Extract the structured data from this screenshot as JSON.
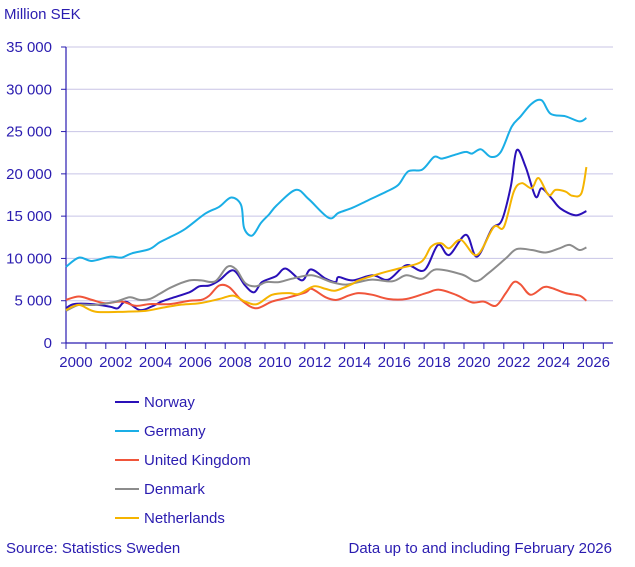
{
  "chart_data": {
    "type": "line",
    "ylabel": "Million SEK",
    "ylim": [
      0,
      35000
    ],
    "yticks": [
      0,
      5000,
      10000,
      15000,
      20000,
      25000,
      30000,
      35000
    ],
    "ytick_labels": [
      "0",
      "5 000",
      "10 000",
      "15 000",
      "20 000",
      "25 000",
      "30 000",
      "35 000"
    ],
    "xlim": [
      2000,
      2027
    ],
    "xtick_labels": [
      "2000",
      "2002",
      "2004",
      "2006",
      "2008",
      "2010",
      "2012",
      "2014",
      "2016",
      "2018",
      "2020",
      "2022",
      "2024",
      "2026"
    ],
    "grid": "horizontal",
    "legend_position": "bottom-left",
    "series": [
      {
        "name": "Norway",
        "color": "#2a10b8",
        "x": [
          2000,
          2000.4,
          2001.3,
          2002.2,
          2002.6,
          2003.0,
          2003.7,
          2004.3,
          2004.8,
          2005.3,
          2006.2,
          2006.7,
          2007.2,
          2007.7,
          2008.4,
          2009.0,
          2009.45,
          2009.85,
          2010.55,
          2011.05,
          2011.85,
          2012.3,
          2013.05,
          2013.55,
          2013.7,
          2014.4,
          2015.4,
          2016.2,
          2017.1,
          2018.0,
          2018.7,
          2019.25,
          2020.1,
          2020.65,
          2021.4,
          2021.9,
          2022.35,
          2022.65,
          2023.1,
          2023.6,
          2023.9,
          2024.4,
          2024.85,
          2025.6,
          2026.15
        ],
        "y": [
          4100,
          4600,
          4600,
          4300,
          4100,
          4900,
          3900,
          4300,
          4900,
          5300,
          6000,
          6700,
          6800,
          7400,
          8600,
          6800,
          6000,
          7200,
          7900,
          8800,
          7400,
          8700,
          7600,
          7200,
          7800,
          7400,
          8000,
          7500,
          9200,
          8600,
          11600,
          10400,
          12800,
          10200,
          13500,
          14500,
          18500,
          22800,
          20800,
          17300,
          18300,
          17100,
          15900,
          15100,
          15600
        ]
      },
      {
        "name": "Germany",
        "color": "#1aaee6",
        "x": [
          2000,
          2000.65,
          2001.3,
          2002.2,
          2002.8,
          2003.3,
          2004.2,
          2004.7,
          2005.3,
          2006.0,
          2007.0,
          2007.7,
          2008.3,
          2008.8,
          2008.95,
          2009.35,
          2009.8,
          2010.2,
          2010.6,
          2011.55,
          2012.2,
          2013.2,
          2013.7,
          2014.4,
          2015.2,
          2016.1,
          2016.7,
          2017.2,
          2017.9,
          2018.5,
          2018.9,
          2019.6,
          2020.1,
          2020.4,
          2020.85,
          2021.35,
          2021.85,
          2022.4,
          2022.85,
          2023.4,
          2023.9,
          2024.35,
          2025.1,
          2025.8,
          2026.15
        ],
        "y": [
          9000,
          10100,
          9700,
          10200,
          10100,
          10600,
          11100,
          11900,
          12600,
          13500,
          15300,
          16100,
          17200,
          16300,
          13600,
          12700,
          14200,
          15200,
          16300,
          18100,
          17000,
          14800,
          15400,
          16000,
          16900,
          17900,
          18700,
          20300,
          20500,
          22000,
          21800,
          22300,
          22600,
          22400,
          22900,
          22000,
          22600,
          25600,
          26800,
          28300,
          28700,
          27100,
          26800,
          26200,
          26600
        ]
      },
      {
        "name": "United Kingdom",
        "color": "#f0553a",
        "x": [
          2000,
          2000.65,
          2001.3,
          2002.0,
          2002.8,
          2003.5,
          2004.2,
          2005.2,
          2006.2,
          2006.8,
          2007.2,
          2007.7,
          2008.2,
          2008.85,
          2009.55,
          2010.35,
          2011.2,
          2012.05,
          2012.35,
          2013.05,
          2013.6,
          2014.2,
          2014.7,
          2015.4,
          2016.2,
          2017.1,
          2018.1,
          2018.75,
          2019.6,
          2020.4,
          2021.0,
          2021.6,
          2022.1,
          2022.5,
          2022.85,
          2023.35,
          2024.0,
          2024.4,
          2025.1,
          2025.8,
          2026.15
        ],
        "y": [
          5100,
          5500,
          5100,
          4700,
          4900,
          4400,
          4600,
          4600,
          5000,
          5100,
          5600,
          6800,
          6600,
          5000,
          4100,
          4900,
          5400,
          6000,
          6400,
          5400,
          5100,
          5600,
          5900,
          5700,
          5200,
          5200,
          5900,
          6300,
          5700,
          4800,
          4900,
          4400,
          5900,
          7200,
          6900,
          5700,
          6600,
          6500,
          5900,
          5600,
          5000
        ]
      },
      {
        "name": "Denmark",
        "color": "#8c8c8c",
        "x": [
          2000,
          2000.65,
          2001.5,
          2002.5,
          2003.2,
          2003.7,
          2004.2,
          2004.7,
          2005.3,
          2006.2,
          2006.8,
          2007.5,
          2008.1,
          2008.55,
          2009.0,
          2009.55,
          2010.05,
          2010.7,
          2011.35,
          2012.35,
          2013.35,
          2014.05,
          2014.7,
          2015.4,
          2016.4,
          2017.1,
          2017.9,
          2018.6,
          2019.9,
          2020.6,
          2021.25,
          2022.1,
          2022.65,
          2023.4,
          2024.1,
          2024.8,
          2025.3,
          2025.8,
          2026.15
        ],
        "y": [
          3800,
          4500,
          4500,
          4900,
          5400,
          5100,
          5200,
          5800,
          6600,
          7400,
          7400,
          7300,
          9000,
          8700,
          7100,
          6700,
          7200,
          7200,
          7600,
          8000,
          7200,
          6900,
          7200,
          7500,
          7300,
          8000,
          7600,
          8700,
          8100,
          7300,
          8300,
          10000,
          11100,
          11000,
          10700,
          11200,
          11600,
          11000,
          11300
        ]
      },
      {
        "name": "Netherlands",
        "color": "#f5b400",
        "x": [
          2000,
          2000.65,
          2001.5,
          2003.0,
          2004.0,
          2004.7,
          2005.7,
          2006.7,
          2007.7,
          2008.4,
          2009.0,
          2009.6,
          2010.35,
          2011.2,
          2011.7,
          2012.45,
          2013.05,
          2013.55,
          2014.4,
          2014.7,
          2015.9,
          2016.7,
          2017.85,
          2018.35,
          2018.85,
          2019.25,
          2019.85,
          2020.65,
          2021.5,
          2022.0,
          2022.5,
          2022.9,
          2023.4,
          2023.75,
          2024.25,
          2024.6,
          2025.1,
          2025.45,
          2025.9,
          2026.15
        ],
        "y": [
          3900,
          4500,
          3700,
          3700,
          3800,
          4100,
          4500,
          4700,
          5200,
          5600,
          4900,
          4600,
          5700,
          5900,
          5800,
          6700,
          6400,
          6200,
          7000,
          7400,
          8300,
          8800,
          9600,
          11400,
          11800,
          11200,
          12200,
          10400,
          13700,
          13700,
          17900,
          18900,
          18300,
          19500,
          17500,
          18100,
          17900,
          17400,
          17700,
          20800
        ]
      }
    ]
  },
  "footer": {
    "source": "Source: Statistics Sweden",
    "note": "Data up to and including February 2026"
  }
}
